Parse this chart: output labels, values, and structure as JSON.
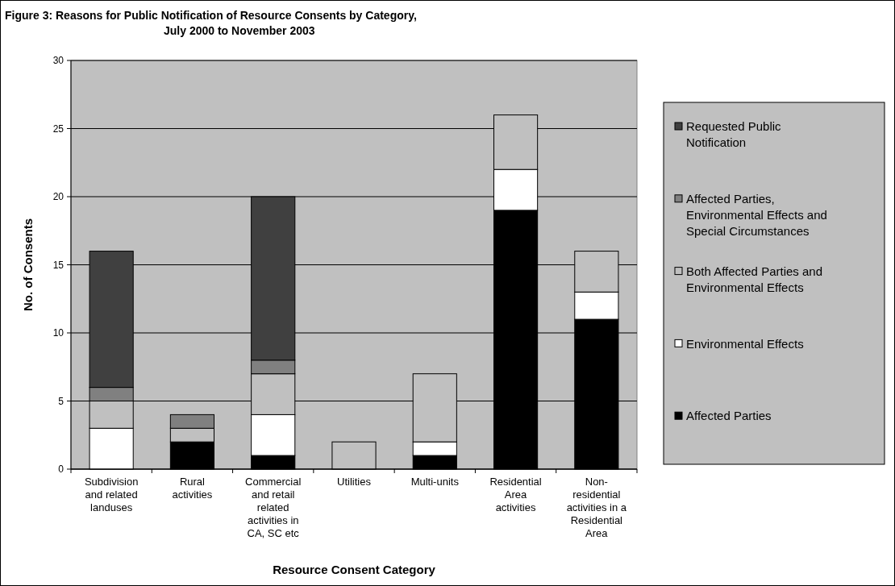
{
  "chart_data": {
    "type": "bar",
    "stacked": true,
    "title": "Figure 3: Reasons for Public Notification of Resource Consents by Category,\nJuly 2000 to November 2003",
    "xlabel": "Resource Consent Category",
    "ylabel": "No. of Consents",
    "categories": [
      "Subdivision and related landuses",
      "Rural activities",
      "Commercial and retail related activities in CA, SC etc",
      "Utilities",
      "Multi-units",
      "Residential Area activities",
      "Non-residential activities in a Residential Area"
    ],
    "series": [
      {
        "name": "Affected Parties",
        "color": "#000000",
        "values": [
          0,
          2,
          1,
          0,
          1,
          19,
          11
        ]
      },
      {
        "name": "Environmental Effects",
        "color": "#ffffff",
        "values": [
          3,
          0,
          3,
          0,
          1,
          3,
          2
        ]
      },
      {
        "name": "Both Affected Parties and Environmental Effects",
        "color": "#c0c0c0",
        "values": [
          2,
          1,
          3,
          2,
          5,
          4,
          3
        ]
      },
      {
        "name": "Affected Parties, Environmental Effects and Special Circumstances",
        "color": "#808080",
        "values": [
          1,
          1,
          1,
          0,
          0,
          0,
          0
        ]
      },
      {
        "name": "Requested Public Notification",
        "color": "#404040",
        "values": [
          10,
          0,
          12,
          0,
          0,
          0,
          0
        ]
      }
    ],
    "ylim": [
      0,
      30
    ],
    "yticks": [
      0,
      5,
      10,
      15,
      20,
      25,
      30
    ],
    "grid": "y",
    "legend": "right"
  }
}
